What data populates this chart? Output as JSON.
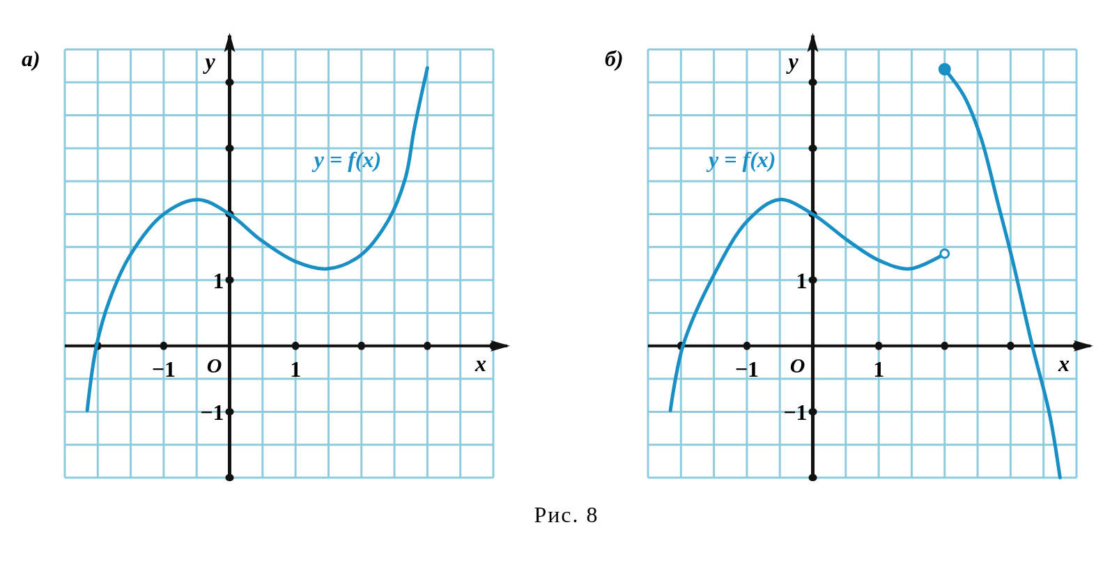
{
  "chart_data": [
    {
      "type": "line",
      "title": "а)",
      "xlabel": "x",
      "ylabel": "y",
      "xlim": [
        -2.5,
        4
      ],
      "ylim": [
        -2,
        4.5
      ],
      "xticks": [
        {
          "value": -2.5,
          "label": null
        },
        {
          "value": -2,
          "label": null
        },
        {
          "value": -1.5,
          "label": null
        },
        {
          "value": -1,
          "label": "−1"
        },
        {
          "value": -0.5,
          "label": null
        },
        {
          "value": 0,
          "label": null
        },
        {
          "value": 0.5,
          "label": null
        },
        1,
        {
          "value": 1.5,
          "label": null
        },
        {
          "value": 2,
          "label": null
        },
        {
          "value": 2.5,
          "label": null
        },
        {
          "value": 3,
          "label": null
        },
        {
          "value": 3.5,
          "label": null
        },
        {
          "value": 4,
          "label": null
        }
      ],
      "yticks": [
        {
          "value": -2,
          "label": null
        },
        {
          "value": -1.5,
          "label": null
        },
        {
          "value": -1,
          "label": "−1"
        },
        {
          "value": -0.5,
          "label": null
        },
        {
          "value": 0,
          "label": null
        },
        {
          "value": 0.5,
          "label": null
        },
        1,
        {
          "value": 1.5,
          "label": null
        },
        {
          "value": 2,
          "label": null
        },
        {
          "value": 2.5,
          "label": null
        },
        {
          "value": 3,
          "label": null
        },
        {
          "value": 3.5,
          "label": null
        },
        {
          "value": 4,
          "label": null
        },
        {
          "value": 4.5,
          "label": null
        }
      ],
      "grid": true,
      "series": [
        {
          "type": "line",
          "color": "#1a8fc4",
          "x": [
            -2.16,
            -2.02,
            -1.82,
            -1.5,
            -1.0,
            -0.48,
            0,
            0.47,
            1.0,
            1.48,
            1.98,
            2.41,
            2.67,
            2.8,
            3.0
          ],
          "values": [
            -0.98,
            0,
            0.7,
            1.39,
            2.0,
            2.22,
            2.0,
            1.61,
            1.28,
            1.17,
            1.37,
            1.91,
            2.56,
            3.29,
            4.22
          ]
        }
      ],
      "annotations": [
        "y = f(x)",
        "O",
        "Рис. 8"
      ]
    },
    {
      "type": "line",
      "title": "б)",
      "xlabel": "x",
      "ylabel": "y",
      "xlim": [
        -2.5,
        4
      ],
      "ylim": [
        -2,
        4.5
      ],
      "xticks": [
        {
          "value": -2.5,
          "label": null
        },
        {
          "value": -2,
          "label": null
        },
        {
          "value": -1.5,
          "label": null
        },
        {
          "value": -1,
          "label": "−1"
        },
        {
          "value": -0.5,
          "label": null
        },
        {
          "value": 0,
          "label": null
        },
        {
          "value": 0.5,
          "label": null
        },
        1,
        {
          "value": 1.5,
          "label": null
        },
        {
          "value": 2,
          "label": null
        },
        {
          "value": 2.5,
          "label": null
        },
        {
          "value": 3,
          "label": null
        },
        {
          "value": 3.5,
          "label": null
        },
        {
          "value": 4,
          "label": null
        }
      ],
      "yticks": [
        {
          "value": -2,
          "label": null
        },
        {
          "value": -1.5,
          "label": null
        },
        {
          "value": -1,
          "label": "−1"
        },
        {
          "value": -0.5,
          "label": null
        },
        {
          "value": 0,
          "label": null
        },
        {
          "value": 0.5,
          "label": null
        },
        1,
        {
          "value": 1.5,
          "label": null
        },
        {
          "value": 2,
          "label": null
        },
        {
          "value": 2.5,
          "label": null
        },
        {
          "value": 3,
          "label": null
        },
        {
          "value": 3.5,
          "label": null
        },
        {
          "value": 4,
          "label": null
        },
        {
          "value": 4.5,
          "label": null
        }
      ],
      "grid": true,
      "series": [
        {
          "type": "line",
          "color": "#1a8fc4",
          "x": [
            -2.16,
            -1.97,
            -1.52,
            -0.99,
            -0.51,
            0,
            0.53,
            1.0,
            1.47,
            2.0
          ],
          "values": [
            -0.98,
            0,
            1.04,
            1.9,
            2.22,
            2.0,
            1.6,
            1.3,
            1.17,
            1.4
          ]
        },
        {
          "type": "line",
          "color": "#1a8fc4",
          "x": [
            2.0,
            2.29,
            2.55,
            2.81,
            3.03,
            3.33,
            3.59,
            3.75
          ],
          "values": [
            4.2,
            3.8,
            3.16,
            2.16,
            1.3,
            0,
            -1.03,
            -2.0
          ]
        },
        {
          "type": "scatter",
          "color": "#1a8fc4",
          "marker": "circle",
          "x": [
            2.0
          ],
          "values": [
            4.2
          ],
          "colors": [
            "#1a8fc4"
          ]
        },
        {
          "type": "scatter",
          "color": "#1a8fc4",
          "marker": "circle",
          "x": [
            2.0
          ],
          "values": [
            1.4
          ],
          "colors": [
            "#ffffff"
          ]
        }
      ],
      "annotations": [
        "y = f(x)",
        "O"
      ]
    }
  ]
}
